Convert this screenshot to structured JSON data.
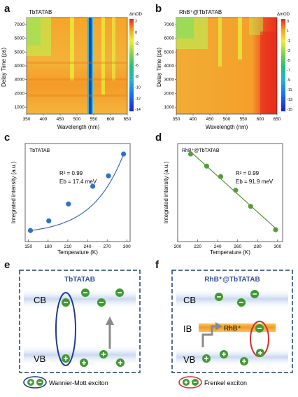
{
  "panel_letters": {
    "a": "a",
    "b": "b",
    "c": "c",
    "d": "d",
    "e": "e",
    "f": "f"
  },
  "heatmaps": [
    {
      "title": "TbTATAB",
      "colorbar_label": "ΔmOD",
      "xlabel": "Wavelength (nm)",
      "ylabel": "Delay Time (ps)",
      "xticks": [
        "350",
        "400",
        "450",
        "500",
        "550",
        "600",
        "650"
      ],
      "yticks": [
        "1000",
        "2000",
        "3000",
        "4000",
        "5000",
        "6000",
        "7000"
      ],
      "cbar_ticks": [
        "2",
        "0",
        "-2",
        "-4",
        "-6",
        "-8",
        "-10",
        "-12",
        "-14"
      ]
    },
    {
      "title": "RhB⁺@TbTATAB",
      "colorbar_label": "ΔmOD",
      "xlabel": "Wavelength (nm)",
      "ylabel": "Delay Time (ps)",
      "xticks": [
        "350",
        "400",
        "450",
        "500",
        "550",
        "600",
        "650"
      ],
      "yticks": [
        "1000",
        "2000",
        "3000",
        "4000",
        "5000",
        "6000",
        "7000"
      ],
      "cbar_ticks": [
        "3",
        "1",
        "-1",
        "-3",
        "-5",
        "-7",
        "-9",
        "-11",
        "-13",
        "-15"
      ]
    }
  ],
  "chart_data": [
    {
      "type": "scatter",
      "title": "TbTATAB",
      "xlabel": "Temperature (K)",
      "ylabel": "Integrated intensity (a.u.)",
      "xlim": [
        145,
        305
      ],
      "xticks": [
        150,
        180,
        210,
        240,
        270,
        300
      ],
      "ylim": [
        0,
        1
      ],
      "x": [
        153,
        181,
        211,
        248,
        272,
        295
      ],
      "y": [
        0.05,
        0.17,
        0.38,
        0.6,
        0.73,
        1.0
      ],
      "fit": "exponential",
      "annotation_r2": "R² = 0.99",
      "annotation_eb": "Eb = 17.4 meV",
      "color": "#2e6fd0"
    },
    {
      "type": "scatter",
      "title": "RhB⁺@TbTATAB",
      "xlabel": "Temperature (K)",
      "ylabel": "Integrated intensity (a.u.)",
      "xlim": [
        200,
        305
      ],
      "xticks": [
        200,
        220,
        240,
        260,
        280,
        300
      ],
      "ylim": [
        0,
        1
      ],
      "x": [
        213,
        229,
        243,
        258,
        273,
        298
      ],
      "y": [
        1.0,
        0.85,
        0.72,
        0.55,
        0.35,
        0.06
      ],
      "fit": "linear",
      "annotation_r2": "R² = 0.99",
      "annotation_eb": "Eb = 91.9 meV",
      "color": "#5b9a3c"
    }
  ],
  "schematic_e": {
    "title": "TbTATAB",
    "cb": "CB",
    "vb": "VB",
    "legend": "Wannier-Mott exciton"
  },
  "schematic_f": {
    "title": "RhB⁺@TbTATAB",
    "cb": "CB",
    "ib": "IB",
    "vb": "VB",
    "rhb": "RhB⁺",
    "legend": "Frenkel exciton"
  },
  "colors": {
    "electron_green": "#3f9a2e",
    "band_blue": "#cfdcf2",
    "ib_orange": "#f4a53b",
    "wannier_ring": "#1f3b8c",
    "frenkel_ring": "#d42f2f",
    "dash_border": "#1f3b6b"
  }
}
